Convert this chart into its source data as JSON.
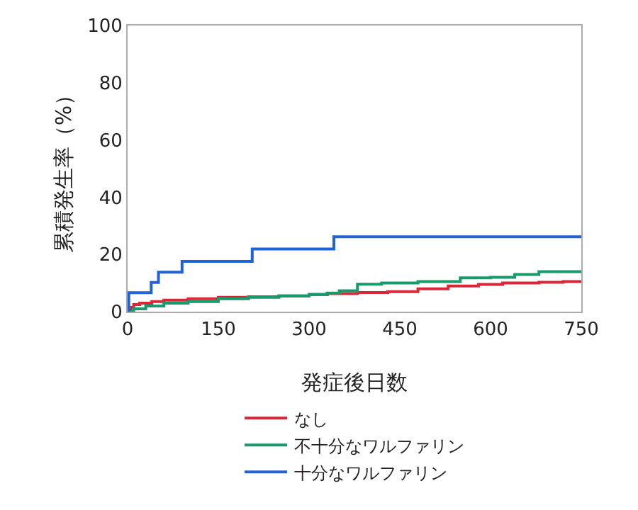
{
  "chart_data": {
    "type": "step",
    "xlabel": "発症後日数",
    "ylabel": "累積発生率（%）",
    "xlim": [
      0,
      750
    ],
    "ylim": [
      0,
      100
    ],
    "xticks": [
      0,
      150,
      300,
      450,
      600,
      750
    ],
    "yticks": [
      0,
      20,
      40,
      60,
      80,
      100
    ],
    "grid": false,
    "legend": "bottom",
    "marker": "none",
    "line_style": "solid",
    "series": [
      {
        "name": "なし",
        "color": "#d62839",
        "x": [
          0,
          5,
          10,
          20,
          40,
          60,
          100,
          150,
          200,
          250,
          300,
          330,
          380,
          430,
          480,
          530,
          580,
          620,
          680,
          720,
          750
        ],
        "values": [
          0,
          1.5,
          2.5,
          3,
          3.5,
          4,
          4.5,
          5,
          5.2,
          5.5,
          6,
          6.3,
          6.7,
          7,
          8,
          9,
          9.5,
          10,
          10.3,
          10.5,
          10.8
        ]
      },
      {
        "name": "不十分なワルファリン",
        "color": "#1a9a6a",
        "x": [
          0,
          10,
          30,
          60,
          100,
          150,
          200,
          250,
          300,
          330,
          350,
          380,
          420,
          480,
          550,
          600,
          640,
          680,
          750
        ],
        "values": [
          0,
          1,
          2,
          3,
          3.5,
          4.5,
          5,
          5.5,
          6,
          6.5,
          7.3,
          9.6,
          10,
          10.5,
          11.8,
          12,
          13,
          14,
          14.2
        ]
      },
      {
        "name": "十分なワルファリン",
        "color": "#1f63d6",
        "x": [
          0,
          2,
          39,
          51,
          90,
          206,
          341,
          750
        ],
        "values": [
          0,
          6.6,
          10.2,
          13.8,
          17.6,
          21.9,
          26.2,
          26.2
        ]
      }
    ]
  }
}
